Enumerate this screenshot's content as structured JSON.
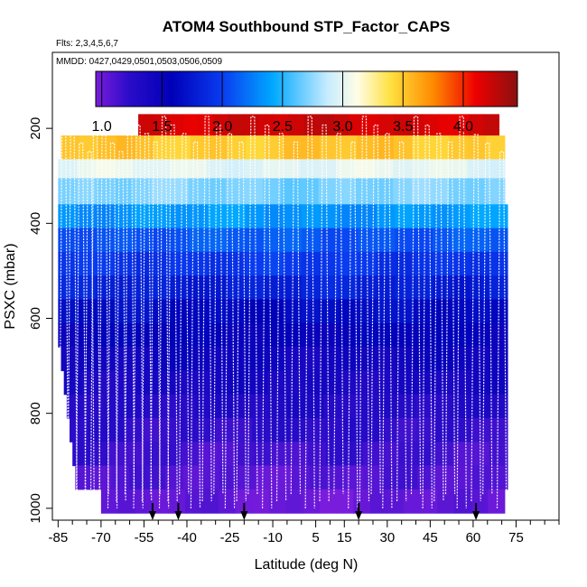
{
  "chart_data": {
    "type": "heatmap",
    "title": "ATOM4 Southbound STP_Factor_CAPS",
    "flights_label": "Flts: 2,3,4,5,6,7",
    "dates_label": "MMDD: 0427,0429,0501,0503,0506,0509",
    "xlabel": "Latitude (deg N)",
    "ylabel": "PSXC (mbar)",
    "xlim": [
      -87,
      90
    ],
    "ylim": [
      1025,
      40
    ],
    "x_ticks_major": [
      -85,
      -70,
      -55,
      -40,
      -25,
      -10,
      5,
      15,
      30,
      45,
      60,
      75
    ],
    "x_ticks_minor": [
      -80,
      -75,
      -65,
      -60,
      -50,
      -45,
      -35,
      -30,
      -20,
      -15,
      -5,
      0,
      10,
      20,
      25,
      35,
      40,
      50,
      55,
      65,
      70,
      80,
      85,
      90
    ],
    "y_ticks": [
      200,
      400,
      600,
      800,
      1000
    ],
    "colorbar": {
      "range": [
        0.95,
        4.45
      ],
      "ticks": [
        1.0,
        1.5,
        2.0,
        2.5,
        3.0,
        3.5,
        4.0
      ],
      "tick_labels": [
        "1.0",
        "1.5",
        "2.0",
        "2.5",
        "3.0",
        "3.5",
        "4.0"
      ]
    },
    "pressure_levels": [
      {
        "p_top": 170,
        "p_bot": 215,
        "lat_min": -57,
        "lat_max": 69,
        "value": 4.2
      },
      {
        "p_top": 215,
        "p_bot": 265,
        "lat_min": -84,
        "lat_max": 71,
        "value": 3.5
      },
      {
        "p_top": 265,
        "p_bot": 305,
        "lat_min": -85,
        "lat_max": 71,
        "value": 3.0
      },
      {
        "p_top": 305,
        "p_bot": 360,
        "lat_min": -85,
        "lat_max": 71,
        "value": 2.7
      },
      {
        "p_top": 360,
        "p_bot": 410,
        "lat_min": -85,
        "lat_max": 72,
        "value": 2.35
      },
      {
        "p_top": 410,
        "p_bot": 460,
        "lat_min": -85,
        "lat_max": 72,
        "value": 2.1
      },
      {
        "p_top": 460,
        "p_bot": 510,
        "lat_min": -85,
        "lat_max": 72,
        "value": 1.95
      },
      {
        "p_top": 510,
        "p_bot": 560,
        "lat_min": -85,
        "lat_max": 72,
        "value": 1.8
      },
      {
        "p_top": 560,
        "p_bot": 610,
        "lat_min": -85,
        "lat_max": 72,
        "value": 1.65
      },
      {
        "p_top": 610,
        "p_bot": 660,
        "lat_min": -85,
        "lat_max": 72,
        "value": 1.55
      },
      {
        "p_top": 660,
        "p_bot": 710,
        "lat_min": -84,
        "lat_max": 72,
        "value": 1.45
      },
      {
        "p_top": 710,
        "p_bot": 760,
        "lat_min": -83,
        "lat_max": 72,
        "value": 1.38
      },
      {
        "p_top": 760,
        "p_bot": 810,
        "lat_min": -82,
        "lat_max": 72,
        "value": 1.3
      },
      {
        "p_top": 810,
        "p_bot": 860,
        "lat_min": -81,
        "lat_max": 72,
        "value": 1.22
      },
      {
        "p_top": 860,
        "p_bot": 910,
        "lat_min": -80,
        "lat_max": 72,
        "value": 1.15
      },
      {
        "p_top": 910,
        "p_bot": 960,
        "lat_min": -79,
        "lat_max": 72,
        "value": 1.08
      },
      {
        "p_top": 960,
        "p_bot": 1010,
        "lat_min": -70,
        "lat_max": 71,
        "value": 1.02
      }
    ],
    "profile_latitudes": [
      -83,
      -80,
      -77,
      -74,
      -72,
      -69,
      -66,
      -63,
      -60,
      -57,
      -54,
      -51,
      -48,
      -45,
      -41,
      -37,
      -33,
      -29,
      -25,
      -21,
      -17,
      -12,
      -7,
      -2,
      3,
      8,
      13,
      18,
      22,
      26,
      30,
      35,
      40,
      44,
      48,
      52,
      56,
      61,
      65,
      70
    ],
    "sample_markers_lat": [
      -52,
      -43,
      -20,
      20,
      61
    ]
  }
}
